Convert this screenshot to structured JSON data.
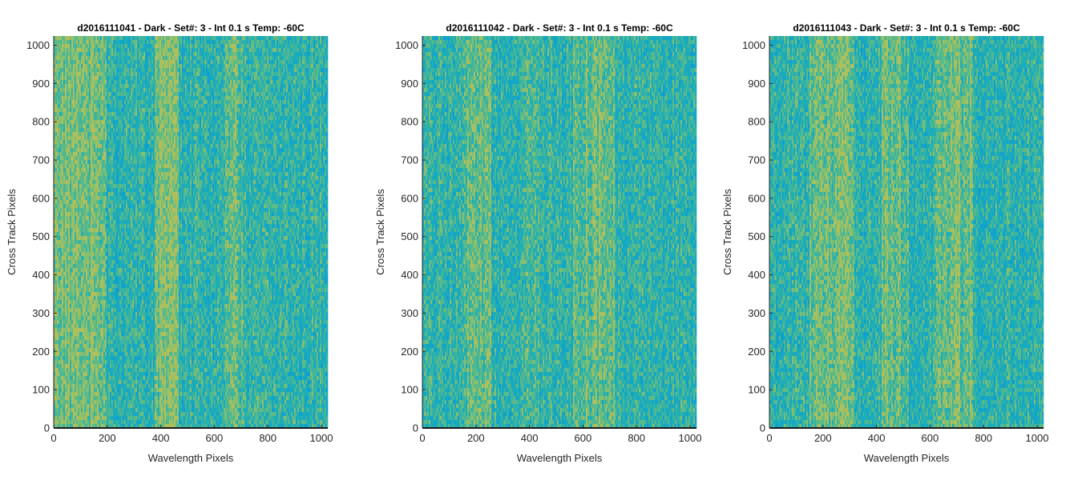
{
  "chart_data": [
    {
      "type": "heatmap",
      "title": "d2016111041 - Dark - Set#: 3 - Int 0.1 s Temp: -60C",
      "xlabel": "Wavelength Pixels",
      "ylabel": "Cross Track Pixels",
      "xlim": [
        0,
        1024
      ],
      "ylim": [
        0,
        1024
      ],
      "xticks": [
        0,
        200,
        400,
        600,
        800,
        1000
      ],
      "yticks": [
        0,
        100,
        200,
        300,
        400,
        500,
        600,
        700,
        800,
        900,
        1000
      ],
      "grid": false,
      "colormap": "parula",
      "palette": [
        "#0f9ecf",
        "#14a6c6",
        "#1fadb6",
        "#3bb4a0",
        "#5cba88",
        "#86bf70",
        "#aebf5c"
      ],
      "base_color": "#21a9b4",
      "bright_columns": [
        [
          0,
          200
        ],
        [
          380,
          470
        ],
        [
          640,
          720
        ]
      ],
      "bright_strength": [
        0.35,
        0.4,
        0.2
      ]
    },
    {
      "type": "heatmap",
      "title": "d2016111042 - Dark - Set#: 3 - Int 0.1 s Temp: -60C",
      "xlabel": "Wavelength Pixels",
      "ylabel": "Cross Track Pixels",
      "xlim": [
        0,
        1024
      ],
      "ylim": [
        0,
        1024
      ],
      "xticks": [
        0,
        200,
        400,
        600,
        800,
        1000
      ],
      "yticks": [
        0,
        100,
        200,
        300,
        400,
        500,
        600,
        700,
        800,
        900,
        1000
      ],
      "grid": false,
      "colormap": "parula",
      "palette": [
        "#0f9ecf",
        "#14a6c6",
        "#1fadb6",
        "#3bb4a0",
        "#5cba88",
        "#86bf70",
        "#aebf5c"
      ],
      "base_color": "#1aa5c4",
      "bright_columns": [
        [
          150,
          260
        ],
        [
          380,
          440
        ],
        [
          560,
          720
        ]
      ],
      "bright_strength": [
        0.25,
        0.2,
        0.25
      ]
    },
    {
      "type": "heatmap",
      "title": "d2016111043 - Dark - Set#: 3 - Int 0.1 s Temp: -60C",
      "xlabel": "Wavelength Pixels",
      "ylabel": "Cross Track Pixels",
      "xlim": [
        0,
        1024
      ],
      "ylim": [
        0,
        1024
      ],
      "xticks": [
        0,
        200,
        400,
        600,
        800,
        1000
      ],
      "yticks": [
        0,
        100,
        200,
        300,
        400,
        500,
        600,
        700,
        800,
        900,
        1000
      ],
      "grid": false,
      "colormap": "parula",
      "palette": [
        "#0f9ecf",
        "#14a6c6",
        "#1fadb6",
        "#3bb4a0",
        "#5cba88",
        "#86bf70",
        "#aebf5c"
      ],
      "base_color": "#1ea8bb",
      "bright_columns": [
        [
          150,
          320
        ],
        [
          420,
          520
        ],
        [
          620,
          760
        ]
      ],
      "bright_strength": [
        0.3,
        0.25,
        0.3
      ]
    }
  ]
}
